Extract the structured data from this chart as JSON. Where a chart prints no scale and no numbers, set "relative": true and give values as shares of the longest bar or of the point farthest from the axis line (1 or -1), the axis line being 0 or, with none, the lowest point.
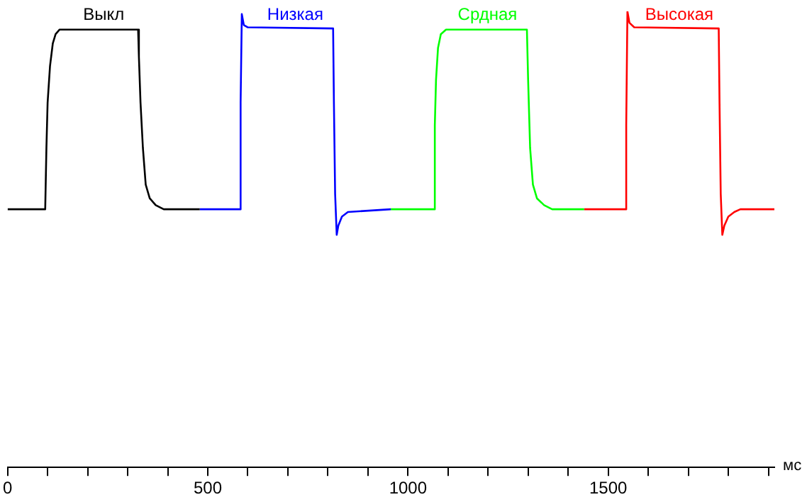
{
  "chart_data": {
    "type": "line",
    "relative": true,
    "xlabel": "мс",
    "xlim": [
      0,
      1915
    ],
    "xticks": [
      0,
      {
        "value": 100,
        "label": null
      },
      {
        "value": 200,
        "label": null
      },
      {
        "value": 300,
        "label": null
      },
      {
        "value": 400,
        "label": null
      },
      500,
      {
        "value": 600,
        "label": null
      },
      {
        "value": 700,
        "label": null
      },
      {
        "value": 800,
        "label": null
      },
      {
        "value": 900,
        "label": null
      },
      1000,
      {
        "value": 1100,
        "label": null
      },
      {
        "value": 1200,
        "label": null
      },
      {
        "value": 1300,
        "label": null
      },
      {
        "value": 1400,
        "label": null
      },
      1500,
      {
        "value": 1600,
        "label": null
      },
      {
        "value": 1700,
        "label": null
      },
      {
        "value": 1800,
        "label": null
      },
      {
        "value": 1900,
        "label": null
      }
    ],
    "grid": false,
    "legend": false,
    "marker": "none",
    "line_style": "solid",
    "tick_labels": "x",
    "series": [
      {
        "name": "Выкл",
        "color": "#000000",
        "x": [
          0,
          94,
          97,
          100,
          106,
          113,
          120,
          130,
          326,
          328,
          332,
          338,
          345,
          355,
          370,
          390,
          480
        ],
        "values": [
          0.566,
          0.566,
          0.7,
          0.8,
          0.88,
          0.93,
          0.95,
          0.96,
          0.96,
          0.9,
          0.8,
          0.7,
          0.62,
          0.59,
          0.575,
          0.566,
          0.566
        ]
      },
      {
        "name": "Низкая",
        "color": "#0000ff",
        "x": [
          480,
          580,
          582,
          585,
          590,
          600,
          813,
          815,
          818,
          822,
          826,
          835,
          850,
          957
        ],
        "values": [
          0.566,
          0.566,
          0.8,
          0.994,
          0.97,
          0.965,
          0.9625,
          0.8,
          0.6,
          0.51,
          0.53,
          0.55,
          0.56,
          0.566
        ]
      },
      {
        "name": "Срдная",
        "color": "#00ff00",
        "x": [
          957,
          1066,
          1067,
          1070,
          1075,
          1082,
          1095,
          1297,
          1300,
          1305,
          1312,
          1322,
          1340,
          1360,
          1440
        ],
        "values": [
          0.566,
          0.566,
          0.75,
          0.85,
          0.92,
          0.95,
          0.96,
          0.96,
          0.85,
          0.7,
          0.62,
          0.59,
          0.575,
          0.566,
          0.566
        ]
      },
      {
        "name": "Высокая",
        "color": "#ff0000",
        "x": [
          1440,
          1544,
          1545,
          1548,
          1553,
          1565,
          1776,
          1778,
          1781,
          1785,
          1790,
          1800,
          1815,
          1830,
          1915
        ],
        "values": [
          0.566,
          0.566,
          0.75,
          1.0,
          0.975,
          0.965,
          0.9625,
          0.8,
          0.6,
          0.51,
          0.53,
          0.55,
          0.56,
          0.566,
          0.566
        ]
      }
    ]
  }
}
